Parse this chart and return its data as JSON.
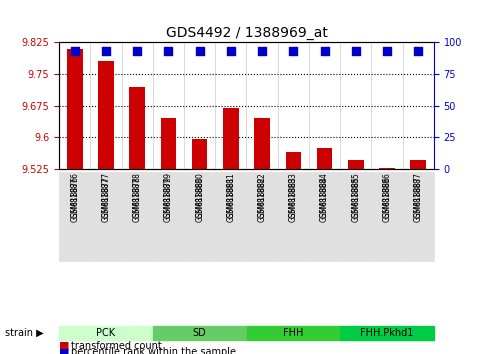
{
  "title": "GDS4492 / 1388969_at",
  "samples": [
    "GSM818876",
    "GSM818877",
    "GSM818878",
    "GSM818879",
    "GSM818880",
    "GSM818881",
    "GSM818882",
    "GSM818883",
    "GSM818884",
    "GSM818885",
    "GSM818886",
    "GSM818887"
  ],
  "transformed_count": [
    9.81,
    9.78,
    9.72,
    9.645,
    9.595,
    9.67,
    9.645,
    9.565,
    9.575,
    9.545,
    9.527,
    9.545
  ],
  "percentile_rank": [
    97,
    96,
    94,
    92,
    91,
    92,
    92,
    91,
    91,
    90,
    89,
    90
  ],
  "bar_color": "#cc0000",
  "dot_color": "#0000cc",
  "ymin": 9.525,
  "ymax": 9.825,
  "yticks": [
    9.525,
    9.6,
    9.675,
    9.75,
    9.825
  ],
  "y2min": 0,
  "y2max": 100,
  "y2ticks": [
    0,
    25,
    50,
    75,
    100
  ],
  "groups": [
    {
      "label": "PCK",
      "start": 0,
      "end": 2,
      "color": "#ccffcc"
    },
    {
      "label": "SD",
      "start": 3,
      "end": 5,
      "color": "#66cc66"
    },
    {
      "label": "FHH",
      "start": 6,
      "end": 8,
      "color": "#33cc33"
    },
    {
      "label": "FHH.Pkhd1",
      "start": 9,
      "end": 11,
      "color": "#00cc44"
    }
  ],
  "strain_label": "strain",
  "legend_bar": "transformed count",
  "legend_dot": "percentile rank within the sample",
  "background_color": "#ffffff",
  "plot_bg": "#ffffff",
  "grid_color": "#000000",
  "tick_label_color_left": "#cc0000",
  "tick_label_color_right": "#0000cc"
}
